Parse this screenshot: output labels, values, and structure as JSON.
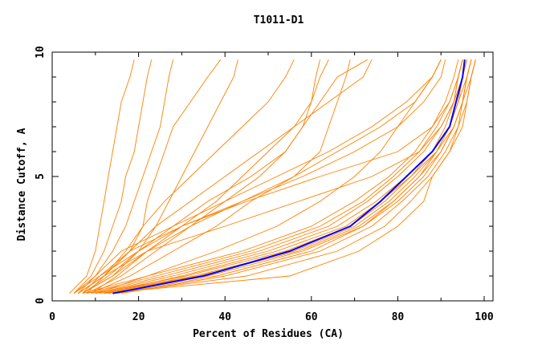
{
  "chart_data": {
    "type": "line",
    "title": "T1011-D1",
    "xlabel": "Percent of Residues (CA)",
    "ylabel": "Distance Cutoff, A",
    "xlim": [
      0,
      100
    ],
    "ylim": [
      0,
      10
    ],
    "xticks": [
      "0",
      "20",
      "40",
      "60",
      "80",
      "100"
    ],
    "yticks": [
      "0",
      "5",
      "10"
    ],
    "grid": false,
    "colors": {
      "models": "#ff8000",
      "highlight": "#0000ff",
      "frame": "#000000"
    },
    "y_levels": [
      0.3,
      1,
      2,
      3,
      4,
      5,
      6,
      7,
      8,
      9,
      9.7
    ],
    "highlight_series": {
      "x": [
        14,
        35,
        55,
        69,
        76,
        82,
        88,
        92,
        93.5,
        95,
        95.5
      ]
    },
    "series": [
      {
        "x": [
          12,
          30,
          52,
          68,
          76,
          83,
          89,
          93,
          95,
          96,
          97
        ]
      },
      {
        "x": [
          10,
          28,
          50,
          66,
          75,
          82,
          88,
          92,
          94,
          95,
          96
        ]
      },
      {
        "x": [
          15,
          38,
          60,
          72,
          79,
          85,
          90,
          93,
          95,
          96,
          97
        ]
      },
      {
        "x": [
          11,
          33,
          56,
          70,
          78,
          84,
          89,
          92,
          94,
          95,
          96
        ]
      },
      {
        "x": [
          9,
          26,
          48,
          64,
          73,
          80,
          86,
          90,
          93,
          94,
          95
        ]
      },
      {
        "x": [
          13,
          36,
          58,
          72,
          80,
          86,
          90,
          93,
          95,
          97,
          98
        ]
      },
      {
        "x": [
          8,
          24,
          46,
          62,
          72,
          79,
          85,
          89,
          92,
          94,
          95
        ]
      },
      {
        "x": [
          16,
          40,
          62,
          74,
          81,
          87,
          91,
          94,
          96,
          97,
          98
        ]
      },
      {
        "x": [
          14,
          45,
          66,
          77,
          83,
          88,
          92,
          95,
          96,
          97,
          98
        ]
      },
      {
        "x": [
          10,
          31,
          54,
          69,
          77,
          83,
          88,
          91,
          93,
          94,
          95
        ]
      },
      {
        "x": [
          12,
          34,
          57,
          71,
          79,
          85,
          89,
          92,
          94,
          96,
          97
        ]
      },
      {
        "x": [
          7,
          22,
          44,
          60,
          70,
          78,
          84,
          88,
          91,
          93,
          94
        ]
      },
      {
        "x": [
          12,
          55,
          71,
          80,
          86,
          88,
          92,
          94,
          95,
          96,
          97
        ]
      },
      {
        "x": [
          6,
          12,
          22,
          40,
          57,
          74,
          85,
          90,
          93,
          95,
          96
        ]
      },
      {
        "x": [
          7,
          11,
          18,
          30,
          45,
          62,
          80,
          88,
          92,
          94,
          95
        ]
      },
      {
        "x": [
          5,
          10,
          16,
          28,
          40,
          52,
          64,
          74,
          82,
          88,
          90
        ]
      },
      {
        "x": [
          4,
          8,
          10,
          11,
          12,
          13,
          14,
          15,
          16,
          18,
          19
        ]
      },
      {
        "x": [
          5,
          9,
          12,
          14,
          16,
          17,
          19,
          20,
          21,
          22,
          23
        ]
      },
      {
        "x": [
          6,
          10,
          14,
          17,
          19,
          21,
          23,
          25,
          26,
          27,
          28
        ]
      },
      {
        "x": [
          6,
          12,
          18,
          21,
          22,
          24,
          26,
          28,
          32,
          36,
          39
        ]
      },
      {
        "x": [
          7,
          14,
          20,
          24,
          27,
          30,
          33,
          36,
          39,
          42,
          43
        ]
      },
      {
        "x": [
          8,
          12,
          17,
          21,
          26,
          32,
          38,
          44,
          50,
          54,
          56
        ]
      },
      {
        "x": [
          9,
          15,
          22,
          30,
          38,
          44,
          50,
          56,
          60,
          62,
          64
        ]
      },
      {
        "x": [
          7,
          13,
          20,
          28,
          36,
          46,
          54,
          58,
          60,
          61,
          62
        ]
      },
      {
        "x": [
          8,
          16,
          24,
          32,
          40,
          48,
          54,
          58,
          62,
          66,
          73
        ]
      },
      {
        "x": [
          6,
          12,
          18,
          24,
          32,
          40,
          48,
          56,
          64,
          72,
          74
        ]
      },
      {
        "x": [
          9,
          18,
          28,
          38,
          46,
          56,
          62,
          64,
          66,
          68,
          69
        ]
      },
      {
        "x": [
          7,
          14,
          22,
          32,
          44,
          56,
          66,
          76,
          84,
          88,
          90
        ]
      },
      {
        "x": [
          10,
          22,
          38,
          52,
          62,
          70,
          76,
          80,
          84,
          88,
          90
        ]
      },
      {
        "x": [
          5,
          11,
          20,
          30,
          44,
          58,
          70,
          80,
          86,
          90,
          91
        ]
      }
    ]
  }
}
